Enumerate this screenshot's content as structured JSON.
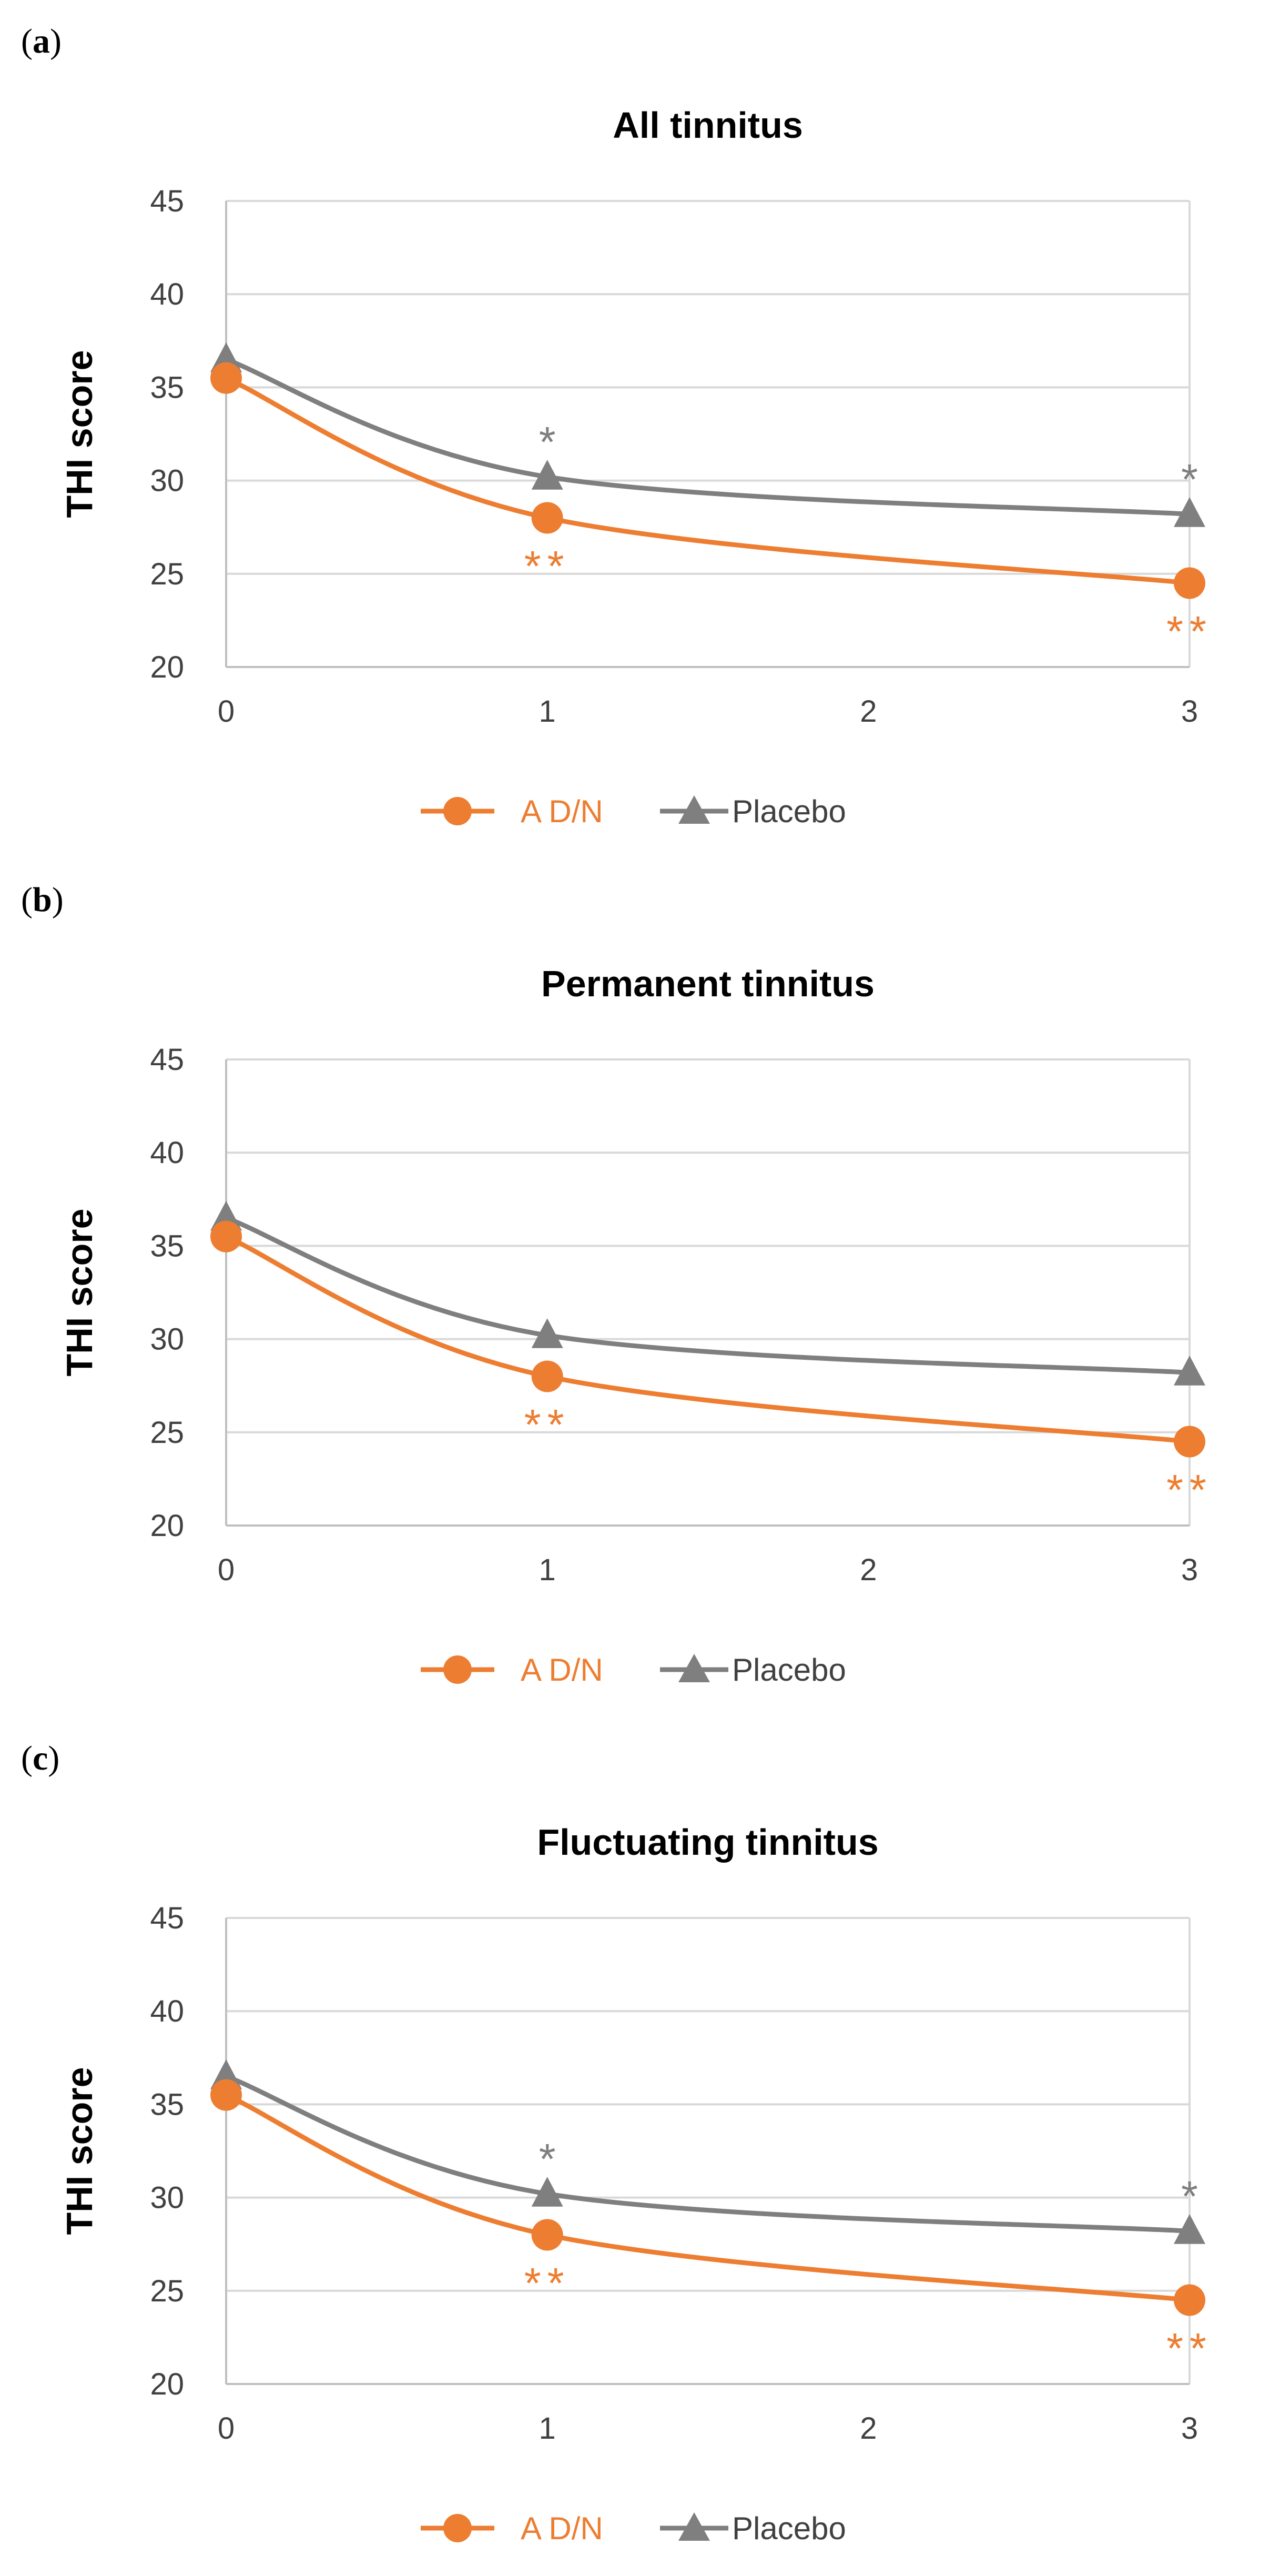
{
  "chart_data": [
    {
      "type": "line",
      "panel_label": "a",
      "title": "All tinnitus",
      "xlabel": "",
      "ylabel": "THI score",
      "x": [
        0,
        1,
        3
      ],
      "x_ticks": [
        "0",
        "1",
        "2",
        "3"
      ],
      "y_ticks": [
        "20",
        "25",
        "30",
        "35",
        "40",
        "45"
      ],
      "xlim": [
        0,
        3
      ],
      "ylim": [
        20,
        45
      ],
      "grid": true,
      "legend": "bottom",
      "series": [
        {
          "name": "A D/N",
          "color": "#ED7D31",
          "marker": "circle",
          "values": [
            35.5,
            28.0,
            24.5
          ],
          "annotations": [
            "",
            "**",
            "**"
          ]
        },
        {
          "name": "Placebo",
          "color": "#7F7F7F",
          "marker": "triangle",
          "values": [
            36.5,
            30.2,
            28.2
          ],
          "annotations": [
            "",
            "*",
            "*"
          ]
        }
      ]
    },
    {
      "type": "line",
      "panel_label": "b",
      "title": "Permanent tinnitus",
      "xlabel": "",
      "ylabel": "THI score",
      "x": [
        0,
        1,
        3
      ],
      "x_ticks": [
        "0",
        "1",
        "2",
        "3"
      ],
      "y_ticks": [
        "20",
        "25",
        "30",
        "35",
        "40",
        "45"
      ],
      "xlim": [
        0,
        3
      ],
      "ylim": [
        20,
        45
      ],
      "grid": true,
      "legend": "bottom",
      "series": [
        {
          "name": "A D/N",
          "color": "#ED7D31",
          "marker": "circle",
          "values": [
            35.5,
            28.0,
            24.5
          ],
          "annotations": [
            "",
            "**",
            "**"
          ]
        },
        {
          "name": "Placebo",
          "color": "#7F7F7F",
          "marker": "triangle",
          "values": [
            36.5,
            30.2,
            28.2
          ],
          "annotations": [
            "",
            "",
            ""
          ]
        }
      ]
    },
    {
      "type": "line",
      "panel_label": "c",
      "title": "Fluctuating tinnitus",
      "xlabel": "",
      "ylabel": "THI score",
      "x": [
        0,
        1,
        3
      ],
      "x_ticks": [
        "0",
        "1",
        "2",
        "3"
      ],
      "y_ticks": [
        "20",
        "25",
        "30",
        "35",
        "40",
        "45"
      ],
      "xlim": [
        0,
        3
      ],
      "ylim": [
        20,
        45
      ],
      "grid": true,
      "legend": "bottom",
      "series": [
        {
          "name": "A D/N",
          "color": "#ED7D31",
          "marker": "circle",
          "values": [
            35.5,
            28.0,
            24.5
          ],
          "annotations": [
            "",
            "**",
            "**"
          ]
        },
        {
          "name": "Placebo",
          "color": "#7F7F7F",
          "marker": "triangle",
          "values": [
            36.5,
            30.2,
            28.2
          ],
          "annotations": [
            "",
            "*",
            "*"
          ]
        }
      ]
    }
  ]
}
